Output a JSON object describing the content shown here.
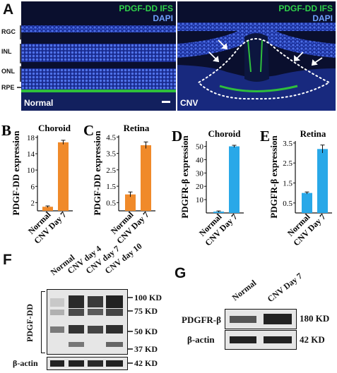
{
  "panelA": {
    "label": "A",
    "normal": {
      "title_marker": "PDGF-DD IFS",
      "title_stain": "DAPI",
      "inset": "Normal",
      "layers": [
        "RGC",
        "INL",
        "ONL",
        "RPE"
      ]
    },
    "cnv": {
      "title_marker": "PDGF-DD IFS",
      "title_stain": "DAPI",
      "inset": "CNV"
    }
  },
  "chart_data": [
    {
      "id": "B",
      "type": "bar",
      "panel_label": "B",
      "title": "Choroid",
      "ylabel": "PDGF-DD expression",
      "categories": [
        "Normal",
        "CNV Day 7"
      ],
      "values": [
        1.0,
        16.8
      ],
      "errors": [
        0.2,
        0.5
      ],
      "yticks": [
        2,
        6,
        10,
        14,
        18
      ],
      "ylim": [
        0,
        18.5
      ],
      "color": "#f08a2a"
    },
    {
      "id": "C",
      "type": "bar",
      "panel_label": "C",
      "title": "Retina",
      "ylabel": "PDGF-DD expression",
      "categories": [
        "Normal",
        "CNV Day 7"
      ],
      "values": [
        1.0,
        4.0
      ],
      "errors": [
        0.15,
        0.2
      ],
      "yticks": [
        0.5,
        1.5,
        2.5,
        3.5,
        4.5
      ],
      "ylim": [
        0,
        4.6
      ],
      "color": "#f08a2a"
    },
    {
      "id": "D",
      "type": "bar",
      "panel_label": "D",
      "title": "Choroid",
      "ylabel": "PDGFR-β expression",
      "categories": [
        "Normal",
        "CNV Day 7"
      ],
      "values": [
        1.0,
        50.0
      ],
      "errors": [
        0.5,
        0.8
      ],
      "yticks": [
        10,
        20,
        30,
        40,
        50
      ],
      "ylim": [
        0,
        54
      ],
      "color": "#29a8e8"
    },
    {
      "id": "E",
      "type": "bar",
      "panel_label": "E",
      "title": "Retina",
      "ylabel": "PDGFR-β expression",
      "categories": [
        "Normal",
        "CNV Day 7"
      ],
      "values": [
        1.0,
        3.2
      ],
      "errors": [
        0.05,
        0.2
      ],
      "yticks": [
        0.5,
        1.5,
        2.5,
        3.5
      ],
      "ylim": [
        0,
        3.6
      ],
      "color": "#29a8e8"
    }
  ],
  "panelF": {
    "label": "F",
    "lanes": [
      "Normal",
      "CNV day 4",
      "CNV day 7",
      "CNV day 10"
    ],
    "target": "PDGF-DD",
    "markers": [
      "100 KD",
      "75 KD",
      "50 KD",
      "37 KD"
    ],
    "loading": "β-actin",
    "loading_kd": "42 KD"
  },
  "panelG": {
    "label": "G",
    "lanes": [
      "Normal",
      "CNV Day 7"
    ],
    "target": "PDGFR-β",
    "target_kd": "180 KD",
    "loading": "β-actin",
    "loading_kd": "42 KD"
  }
}
